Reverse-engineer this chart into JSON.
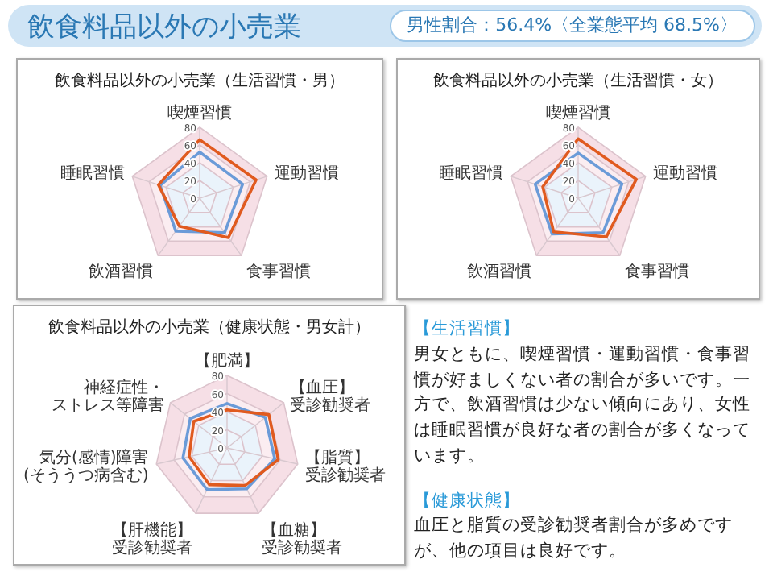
{
  "chart_data": [
    {
      "type": "radar",
      "title": "飲食料品以外の小売業（生活習慣・男）",
      "categories": [
        "喫煙習慣",
        "運動習慣",
        "食事習慣",
        "飲酒習慣",
        "睡眠習慣"
      ],
      "ylim": [
        0,
        80
      ],
      "yticks": [
        0,
        20,
        40,
        60,
        80
      ],
      "grid": true,
      "series": [
        {
          "color": "#6b9bd8",
          "values": [
            52,
            51,
            48,
            46,
            47
          ]
        },
        {
          "color": "#e05a1f",
          "values": [
            66,
            67,
            55,
            39,
            49
          ]
        }
      ]
    },
    {
      "type": "radar",
      "title": "飲食料品以外の小売業（生活習慣・女）",
      "categories": [
        "喫煙習慣",
        "運動習慣",
        "食事習慣",
        "飲酒習慣",
        "睡眠習慣"
      ],
      "ylim": [
        0,
        80
      ],
      "yticks": [
        0,
        20,
        40,
        60,
        80
      ],
      "grid": true,
      "series": [
        {
          "color": "#6b9bd8",
          "values": [
            51,
            52,
            48,
            50,
            51
          ]
        },
        {
          "color": "#e05a1f",
          "values": [
            67,
            69,
            54,
            47,
            42
          ]
        }
      ]
    },
    {
      "type": "radar",
      "title": "飲食料品以外の小売業（健康状態・男女計）",
      "categories": [
        "【肥満】",
        "【血圧】受診勧奨者",
        "【脂質】受診勧奨者",
        "【血糖】受診勧奨者",
        "【肝機能】受診勧奨者",
        "気分(感情)障害(そううつ病含む)",
        "神経症性・ストレス等障害"
      ],
      "ylim": [
        0,
        80
      ],
      "yticks": [
        0,
        20,
        40,
        60,
        80
      ],
      "grid": true,
      "series": [
        {
          "color": "#6b9bd8",
          "values": [
            49,
            54,
            54,
            50,
            51,
            50,
            52
          ]
        },
        {
          "color": "#e05a1f",
          "values": [
            42,
            59,
            58,
            46,
            45,
            43,
            47
          ]
        }
      ]
    },
    {
      "type": "other",
      "title": "飲食料品以外の小売業",
      "subtitle": "男性割合：56.4%〈全業態平均 68.5%〉",
      "annotations": [
        "【生活習慣】",
        "男女ともに、喫煙習慣・運動習慣・食事習慣が好ましくない者の割合が多いです。一方で、飲酒習慣は少ない傾向にあり、女性は睡眠習慣が良好な者の割合が多くなっています。",
        "【健康状態】",
        "血圧と脂質の受診勧奨者割合が多めですが、他の項目は良好です。"
      ]
    }
  ]
}
